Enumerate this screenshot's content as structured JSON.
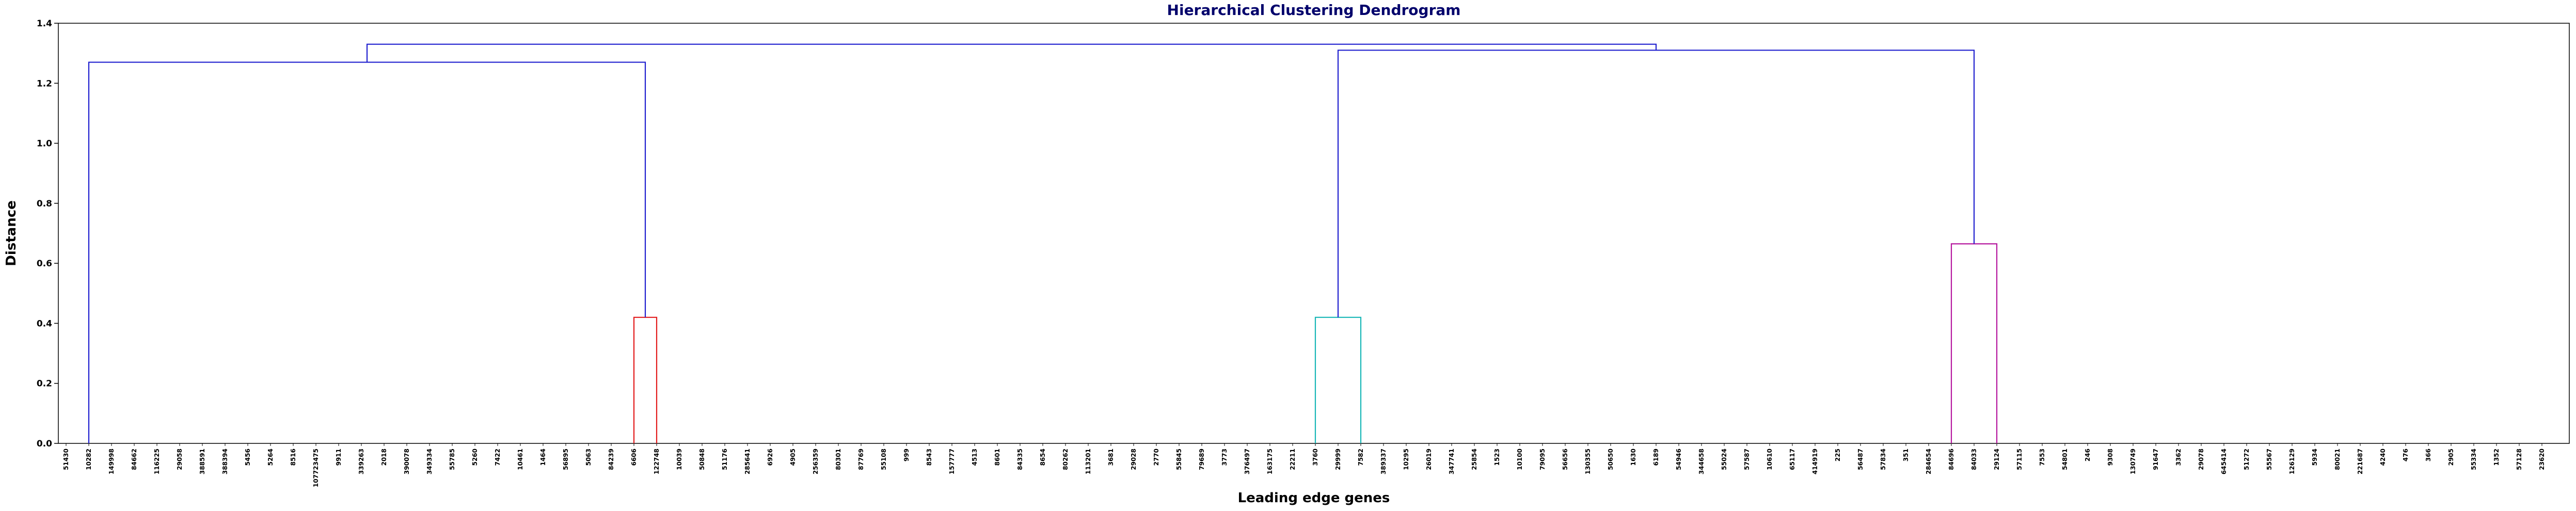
{
  "chart_data": {
    "type": "dendrogram",
    "title": "Hierarchical Clustering Dendrogram",
    "xlabel": "Leading edge genes",
    "ylabel": "Distance",
    "ylim": [
      0,
      1.4
    ],
    "y_ticks": [
      0.0,
      0.2,
      0.4,
      0.6,
      0.8,
      1.0,
      1.2,
      1.4
    ],
    "y_tick_labels": [
      "0.0",
      "0.2",
      "0.4",
      "0.6",
      "0.8",
      "1.0",
      "1.2",
      "1.4"
    ],
    "grid": false,
    "leaves": [
      "51430",
      "10282",
      "149998",
      "84662",
      "116225",
      "29058",
      "388591",
      "388394",
      "5456",
      "5264",
      "8516",
      "107723475",
      "9911",
      "339263",
      "2018",
      "390078",
      "349334",
      "55785",
      "5260",
      "7422",
      "10461",
      "1464",
      "56895",
      "5063",
      "84239",
      "6606",
      "122748",
      "10039",
      "50848",
      "51176",
      "285641",
      "6926",
      "4905",
      "256359",
      "80301",
      "87769",
      "55108",
      "999",
      "8543",
      "157777",
      "4513",
      "8601",
      "84335",
      "8654",
      "80262",
      "113201",
      "3681",
      "29028",
      "2770",
      "55845",
      "79689",
      "3773",
      "376497",
      "163175",
      "22211",
      "3760",
      "29999",
      "7582",
      "389337",
      "10295",
      "26019",
      "347741",
      "25854",
      "1523",
      "10100",
      "79095",
      "56656",
      "130355",
      "50650",
      "1630",
      "6189",
      "54946",
      "344658",
      "55024",
      "57587",
      "10610",
      "65117",
      "414919",
      "225",
      "56487",
      "57834",
      "351",
      "284654",
      "84696",
      "84033",
      "29124",
      "57115",
      "7553",
      "54801",
      "246",
      "9308",
      "130749",
      "91647",
      "3362",
      "29078",
      "645414",
      "51272",
      "55567",
      "126129",
      "5934",
      "80021",
      "221687",
      "4240",
      "476",
      "366",
      "2905",
      "55334",
      "1352",
      "57128",
      "23620"
    ],
    "colors": {
      "red": "#e31a1c",
      "cyan": "#17b6b6",
      "magenta": "#b5179e",
      "blue": "#1f1fcf"
    },
    "links": [
      {
        "name": "red-cluster",
        "color": "red",
        "height": 0.42,
        "left": {
          "leaf": 25
        },
        "right": {
          "leaf": 26
        }
      },
      {
        "name": "cyan-cluster",
        "color": "cyan",
        "height": 0.42,
        "left": {
          "leaf": 55
        },
        "right": {
          "leaf": 57
        }
      },
      {
        "name": "magenta-cluster",
        "color": "magenta",
        "height": 0.665,
        "left": {
          "leaf": 83
        },
        "right": {
          "leaf": 85
        }
      },
      {
        "name": "left-branch-merge",
        "color": "blue",
        "height": 1.27,
        "left": {
          "leaf": 1
        },
        "right": {
          "link": 0
        }
      },
      {
        "name": "right-branch-merge",
        "color": "blue",
        "height": 1.31,
        "left": {
          "link": 1
        },
        "right": {
          "link": 2
        }
      },
      {
        "name": "root-merge",
        "color": "blue",
        "height": 1.33,
        "left": {
          "link": 3
        },
        "right": {
          "link": 4
        }
      }
    ]
  }
}
